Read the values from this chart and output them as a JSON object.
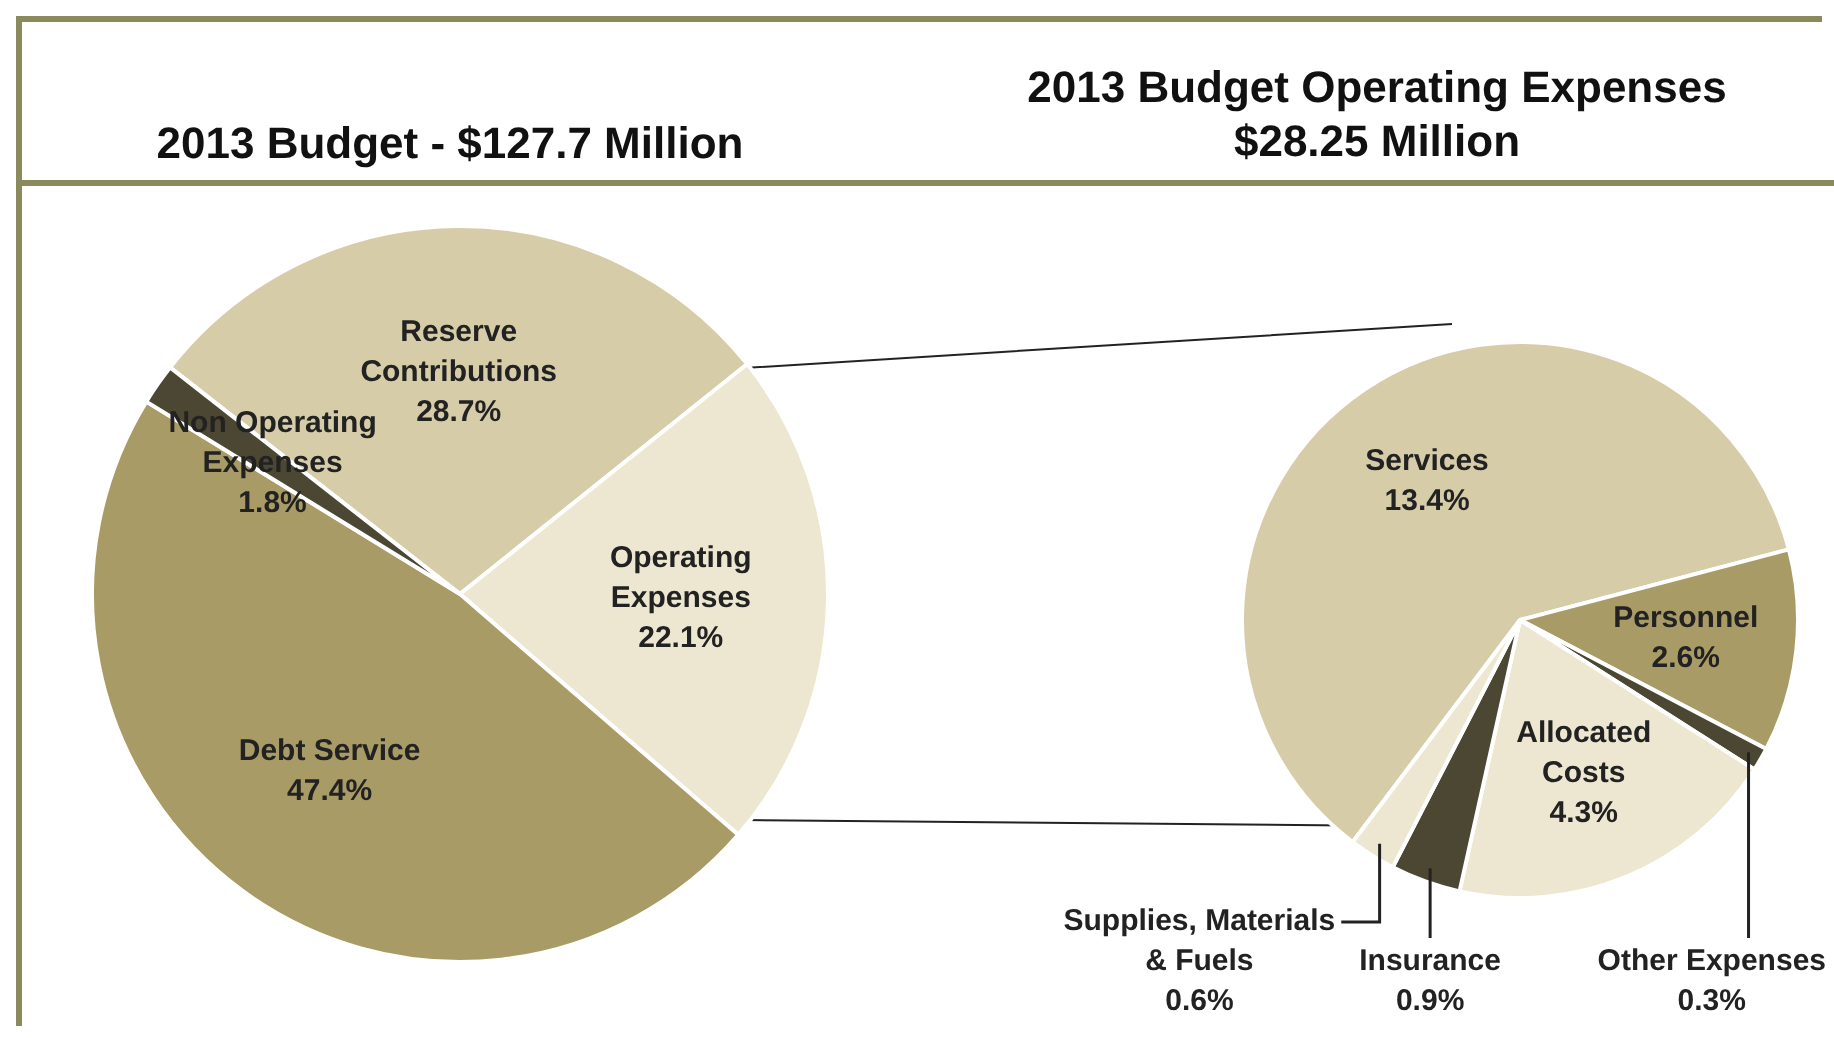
{
  "chart_data": [
    {
      "type": "pie",
      "title": "2013 Budget - $127.7 Million",
      "categories": [
        "Reserve Contributions",
        "Operating Expenses",
        "Debt Service",
        "Non Operating Expenses"
      ],
      "values": [
        28.7,
        22.1,
        47.4,
        1.8
      ],
      "colors": [
        "#d6cca8",
        "#ede7d1",
        "#a99b66",
        "#4b4733"
      ],
      "value_labels": [
        "28.7%",
        "22.1%",
        "47.4%",
        "1.8%"
      ]
    },
    {
      "type": "pie",
      "title": "2013 Budget Operating Expenses",
      "subtitle": "$28.25 Million",
      "categories": [
        "Services",
        "Personnel",
        "Other Expenses",
        "Allocated Costs",
        "Insurance",
        "Supplies, Materials & Fuels"
      ],
      "values": [
        13.4,
        2.6,
        0.3,
        4.3,
        0.9,
        0.6
      ],
      "colors": [
        "#d6cca8",
        "#a99b66",
        "#4b4733",
        "#ede7d1",
        "#4b4733",
        "#ede7d1"
      ],
      "value_labels": [
        "13.4%",
        "2.6%",
        "0.3%",
        "4.3%",
        "0.9%",
        "0.6%"
      ]
    }
  ]
}
